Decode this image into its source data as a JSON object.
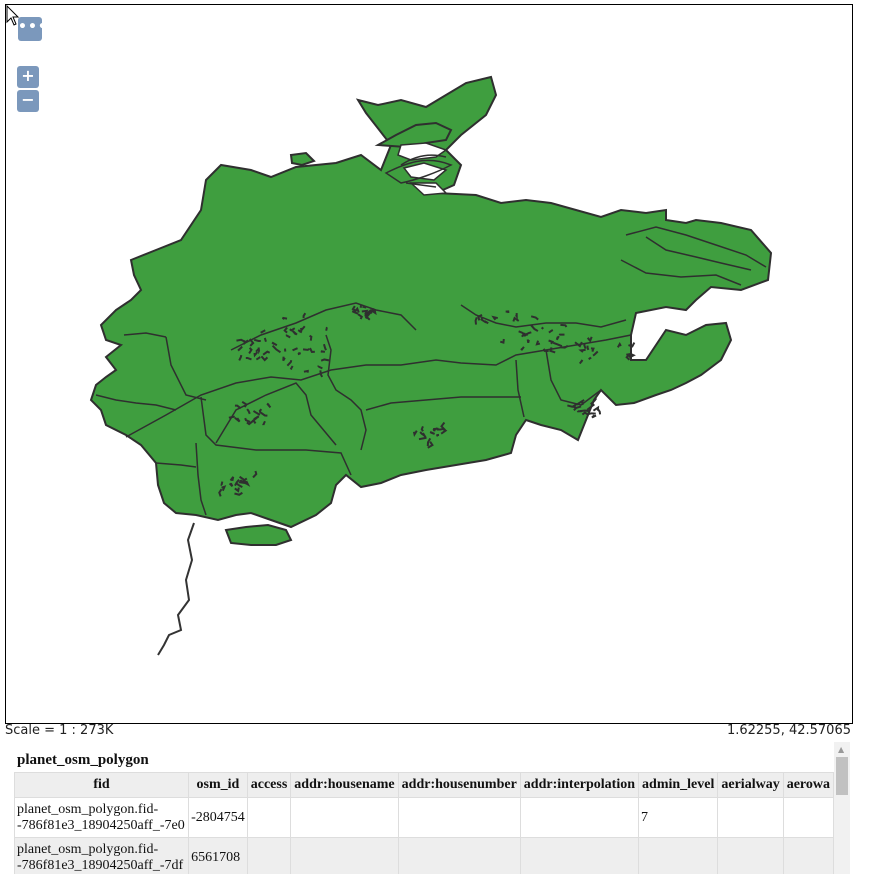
{
  "map": {
    "fill_color": "#3f9e3f",
    "stroke_color": "#2f2f2f",
    "controls": {
      "options_icon": "ellipsis-icon",
      "zoom_in_label": "+",
      "zoom_out_label": "−"
    }
  },
  "status": {
    "scale": "Scale = 1 : 273K",
    "coords": "1.62255, 42.57065"
  },
  "attributes": {
    "layer_title": "planet_osm_polygon",
    "columns": [
      "fid",
      "osm_id",
      "access",
      "addr:housename",
      "addr:housenumber",
      "addr:interpolation",
      "admin_level",
      "aerialway",
      "aerowa"
    ],
    "rows": [
      {
        "fid_line1": "planet_osm_polygon.fid-",
        "fid_line2": "-786f81e3_18904250aff_-7e0",
        "osm_id": "-2804754",
        "access": "",
        "addr_housename": "",
        "addr_housenumber": "",
        "addr_interpolation": "",
        "admin_level": "7",
        "aerialway": "",
        "aeroway": ""
      },
      {
        "fid_line1": "planet_osm_polygon.fid-",
        "fid_line2": "-786f81e3_18904250aff_-7df",
        "osm_id": "6561708",
        "access": "",
        "addr_housename": "",
        "addr_housenumber": "",
        "addr_interpolation": "",
        "admin_level": "",
        "aerialway": "",
        "aeroway": ""
      }
    ]
  }
}
